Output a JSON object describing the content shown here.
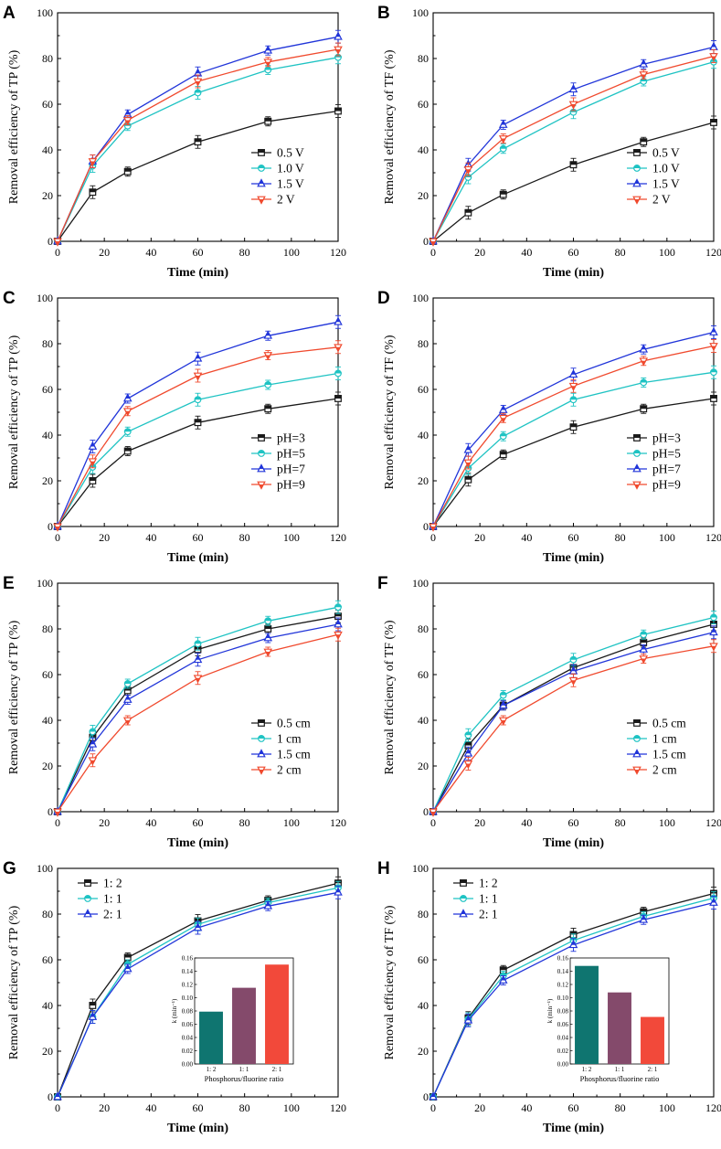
{
  "figure": {
    "colors": {
      "black": "#1a1a1a",
      "cyan": "#1fc3c3",
      "blue": "#2135d9",
      "red": "#f04a2e",
      "teal": "#0f7570",
      "plum": "#844a6b",
      "orange_red": "#f2493a"
    }
  },
  "chart_data": [
    {
      "panel": "A",
      "type": "line",
      "xlabel": "Time (min)",
      "ylabel": "Removal efficiency of TP (%)",
      "xlim": [
        0,
        120
      ],
      "ylim": [
        0,
        100
      ],
      "xticks": [
        "0",
        "20",
        "40",
        "60",
        "80",
        "100",
        "120"
      ],
      "yticks": [
        "0",
        "20",
        "40",
        "60",
        "80",
        "100"
      ],
      "legend_position": "bottom-right",
      "x": [
        0,
        15,
        30,
        60,
        90,
        120
      ],
      "series": [
        {
          "name": "0.5 V",
          "color": "black",
          "marker": "square",
          "values": [
            0,
            21.5,
            30.5,
            43.5,
            52.5,
            57
          ]
        },
        {
          "name": "1.0 V",
          "color": "cyan",
          "marker": "circle",
          "values": [
            0,
            33,
            50.5,
            65,
            75,
            80.5
          ]
        },
        {
          "name": "1.5 V",
          "color": "blue",
          "marker": "triangle-up",
          "values": [
            0,
            35,
            55.5,
            73.5,
            83.5,
            89.5
          ]
        },
        {
          "name": "2 V",
          "color": "red",
          "marker": "triangle-down",
          "values": [
            0,
            35,
            53,
            70,
            78.5,
            84
          ]
        }
      ]
    },
    {
      "panel": "B",
      "type": "line",
      "xlabel": "Time (min)",
      "ylabel": "Removal efficiency of TF (%)",
      "xlim": [
        0,
        120
      ],
      "ylim": [
        0,
        100
      ],
      "xticks": [
        "0",
        "20",
        "40",
        "60",
        "80",
        "100",
        "120"
      ],
      "yticks": [
        "0",
        "20",
        "40",
        "60",
        "80",
        "100"
      ],
      "legend_position": "bottom-right",
      "x": [
        0,
        15,
        30,
        60,
        90,
        120
      ],
      "series": [
        {
          "name": "0.5 V",
          "color": "black",
          "marker": "square",
          "values": [
            0,
            12.5,
            20.5,
            33.5,
            43.5,
            52
          ]
        },
        {
          "name": "1.0 V",
          "color": "cyan",
          "marker": "circle",
          "values": [
            0,
            28,
            40.5,
            56.5,
            70,
            78.5
          ]
        },
        {
          "name": "1.5 V",
          "color": "blue",
          "marker": "triangle-up",
          "values": [
            0,
            33.5,
            51,
            66.5,
            77.5,
            85
          ]
        },
        {
          "name": "2 V",
          "color": "red",
          "marker": "triangle-down",
          "values": [
            0,
            31.5,
            45,
            60,
            73,
            81
          ]
        }
      ]
    },
    {
      "panel": "C",
      "type": "line",
      "xlabel": "Time (min)",
      "ylabel": "Removal efficiency of TP (%)",
      "xlim": [
        0,
        120
      ],
      "ylim": [
        0,
        100
      ],
      "xticks": [
        "0",
        "20",
        "40",
        "60",
        "80",
        "100",
        "120"
      ],
      "yticks": [
        "0",
        "20",
        "40",
        "60",
        "80",
        "100"
      ],
      "legend_position": "bottom-right",
      "x": [
        0,
        15,
        30,
        60,
        90,
        120
      ],
      "series": [
        {
          "name": "pH=3",
          "color": "black",
          "marker": "square",
          "values": [
            0,
            20,
            33,
            45.5,
            51.5,
            56
          ]
        },
        {
          "name": "pH=5",
          "color": "cyan",
          "marker": "circle",
          "values": [
            0,
            26,
            41.5,
            55.5,
            62,
            67
          ]
        },
        {
          "name": "pH=7",
          "color": "blue",
          "marker": "triangle-up",
          "values": [
            0,
            35,
            56,
            73.5,
            83.5,
            89.5
          ]
        },
        {
          "name": "pH=9",
          "color": "red",
          "marker": "triangle-down",
          "values": [
            0,
            28.5,
            50.5,
            66,
            75,
            78.5
          ]
        }
      ]
    },
    {
      "panel": "D",
      "type": "line",
      "xlabel": "Time (min)",
      "ylabel": "Removal efficiency of TF (%)",
      "xlim": [
        0,
        120
      ],
      "ylim": [
        0,
        100
      ],
      "xticks": [
        "0",
        "20",
        "40",
        "60",
        "80",
        "100",
        "120"
      ],
      "yticks": [
        "0",
        "20",
        "40",
        "60",
        "80",
        "100"
      ],
      "legend_position": "bottom-right",
      "x": [
        0,
        15,
        30,
        60,
        90,
        120
      ],
      "series": [
        {
          "name": "pH=3",
          "color": "black",
          "marker": "square",
          "values": [
            0,
            20.5,
            31.5,
            43.5,
            51.5,
            56
          ]
        },
        {
          "name": "pH=5",
          "color": "cyan",
          "marker": "circle",
          "values": [
            0,
            25.5,
            39.5,
            55.5,
            63,
            67.5
          ]
        },
        {
          "name": "pH=7",
          "color": "blue",
          "marker": "triangle-up",
          "values": [
            0,
            33.5,
            51,
            66.5,
            77.5,
            85
          ]
        },
        {
          "name": "pH=9",
          "color": "red",
          "marker": "triangle-down",
          "values": [
            0,
            28,
            47.5,
            61.5,
            72.5,
            79
          ]
        }
      ]
    },
    {
      "panel": "E",
      "type": "line",
      "xlabel": "Time (min)",
      "ylabel": "Removal efficiency of TP (%)",
      "xlim": [
        0,
        120
      ],
      "ylim": [
        0,
        100
      ],
      "xticks": [
        "0",
        "20",
        "40",
        "60",
        "80",
        "100",
        "120"
      ],
      "yticks": [
        "0",
        "20",
        "40",
        "60",
        "80",
        "100"
      ],
      "legend_position": "bottom-right",
      "x": [
        0,
        15,
        30,
        60,
        90,
        120
      ],
      "series": [
        {
          "name": "0.5 cm",
          "color": "black",
          "marker": "square",
          "values": [
            0,
            32.5,
            53,
            71,
            80,
            85.5
          ]
        },
        {
          "name": "1 cm",
          "color": "cyan",
          "marker": "circle",
          "values": [
            0,
            35,
            56,
            73.5,
            83.5,
            89.5
          ]
        },
        {
          "name": "1.5 cm",
          "color": "blue",
          "marker": "triangle-up",
          "values": [
            0,
            29.5,
            49,
            66.5,
            76,
            82
          ]
        },
        {
          "name": "2 cm",
          "color": "red",
          "marker": "triangle-down",
          "values": [
            0,
            22.5,
            40,
            58.5,
            70,
            77.5
          ]
        }
      ]
    },
    {
      "panel": "F",
      "type": "line",
      "xlabel": "Time (min)",
      "ylabel": "Removal efficiency of TF (%)",
      "xlim": [
        0,
        120
      ],
      "ylim": [
        0,
        100
      ],
      "xticks": [
        "0",
        "20",
        "40",
        "60",
        "80",
        "100",
        "120"
      ],
      "yticks": [
        "0",
        "20",
        "40",
        "60",
        "80",
        "100"
      ],
      "legend_position": "bottom-right",
      "x": [
        0,
        15,
        30,
        60,
        90,
        120
      ],
      "series": [
        {
          "name": "0.5 cm",
          "color": "black",
          "marker": "square",
          "values": [
            0,
            29,
            46.5,
            63,
            74,
            82
          ]
        },
        {
          "name": "1 cm",
          "color": "cyan",
          "marker": "circle",
          "values": [
            0,
            33.5,
            51,
            66.5,
            77.5,
            85
          ]
        },
        {
          "name": "1.5 cm",
          "color": "blue",
          "marker": "triangle-up",
          "values": [
            0,
            25.5,
            46.5,
            61.5,
            71,
            78.5
          ]
        },
        {
          "name": "2 cm",
          "color": "red",
          "marker": "triangle-down",
          "values": [
            0,
            21,
            40,
            57.5,
            67,
            72.5
          ]
        }
      ]
    },
    {
      "panel": "G",
      "type": "line",
      "xlabel": "Time (min)",
      "ylabel": "Removal efficiency of TP (%)",
      "xlim": [
        0,
        120
      ],
      "ylim": [
        0,
        100
      ],
      "xticks": [
        "0",
        "20",
        "40",
        "60",
        "80",
        "100",
        "120"
      ],
      "yticks": [
        "0",
        "20",
        "40",
        "60",
        "80",
        "100"
      ],
      "legend_position": "top-left",
      "x": [
        0,
        15,
        30,
        60,
        90,
        120
      ],
      "series": [
        {
          "name": "1: 2",
          "color": "black",
          "marker": "square",
          "values": [
            0,
            40,
            61,
            77,
            86,
            93.5
          ]
        },
        {
          "name": "1: 1",
          "color": "cyan",
          "marker": "circle",
          "values": [
            0,
            35,
            58,
            75.5,
            85,
            91.5
          ]
        },
        {
          "name": "2: 1",
          "color": "blue",
          "marker": "triangle-up",
          "values": [
            0,
            35,
            56,
            74,
            83.5,
            89.5
          ]
        }
      ],
      "inset": {
        "type": "bar",
        "categories": [
          "1: 2",
          "1: 1",
          "2: 1"
        ],
        "values": [
          0.079,
          0.115,
          0.15
        ],
        "colors": [
          "teal",
          "plum",
          "orange_red"
        ],
        "ylim": [
          0,
          0.16
        ],
        "yticks": [
          "0.00",
          "0.02",
          "0.04",
          "0.06",
          "0.08",
          "0.10",
          "0.12",
          "0.14",
          "0.16"
        ],
        "ylabel": "k (min⁻¹)",
        "xlabel": "Phosphorus/fluorine ratio"
      }
    },
    {
      "panel": "H",
      "type": "line",
      "xlabel": "Time (min)",
      "ylabel": "Removal efficiency of TF (%)",
      "xlim": [
        0,
        120
      ],
      "ylim": [
        0,
        100
      ],
      "xticks": [
        "0",
        "20",
        "40",
        "60",
        "80",
        "100",
        "120"
      ],
      "yticks": [
        "0",
        "20",
        "40",
        "60",
        "80",
        "100"
      ],
      "legend_position": "top-left",
      "x": [
        0,
        15,
        30,
        60,
        90,
        120
      ],
      "series": [
        {
          "name": "1: 2",
          "color": "black",
          "marker": "square",
          "values": [
            0,
            34.5,
            55.5,
            71,
            81,
            89
          ]
        },
        {
          "name": "1: 1",
          "color": "cyan",
          "marker": "circle",
          "values": [
            0,
            34,
            53,
            68.5,
            79,
            87
          ]
        },
        {
          "name": "2: 1",
          "color": "blue",
          "marker": "triangle-up",
          "values": [
            0,
            33.5,
            51,
            66.5,
            77.5,
            85
          ]
        }
      ],
      "inset": {
        "type": "bar",
        "categories": [
          "1: 2",
          "1: 1",
          "2: 1"
        ],
        "values": [
          0.148,
          0.108,
          0.071
        ],
        "colors": [
          "teal",
          "plum",
          "orange_red"
        ],
        "ylim": [
          0,
          0.16
        ],
        "yticks": [
          "0.00",
          "0.02",
          "0.04",
          "0.06",
          "0.08",
          "0.10",
          "0.12",
          "0.14",
          "0.16"
        ],
        "ylabel": "k (min⁻¹)",
        "xlabel": "Phosphorus/fluorine ratio"
      }
    }
  ]
}
